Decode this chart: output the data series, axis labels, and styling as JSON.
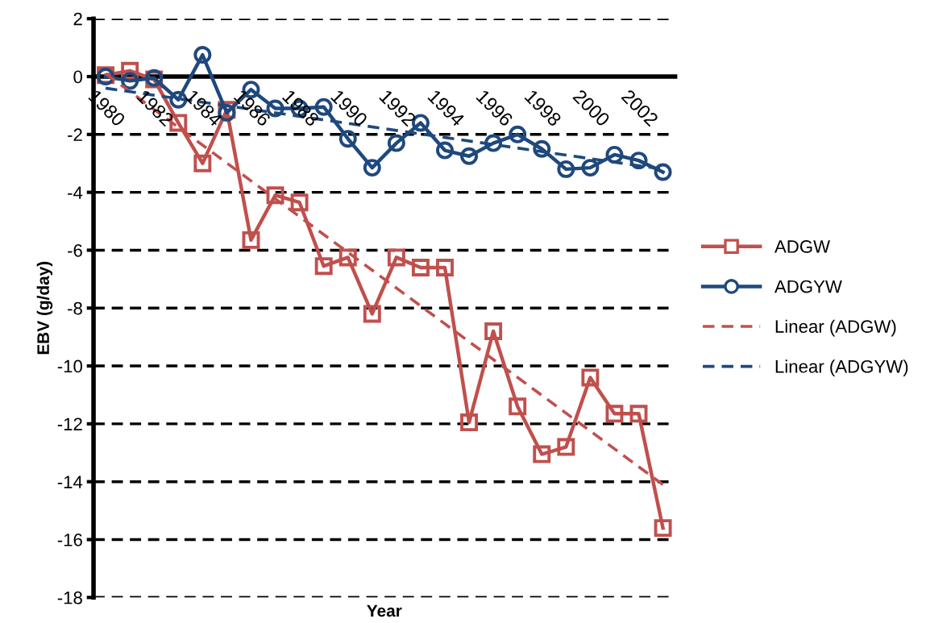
{
  "chart_data": {
    "type": "line",
    "xlabel": "Year",
    "ylabel": "EBV (g/day)",
    "categories": [
      "1980",
      null,
      "1982",
      null,
      "1984",
      null,
      "1986",
      null,
      "1988",
      null,
      "1990",
      null,
      "1992",
      null,
      "1994",
      null,
      "1996",
      null,
      "1998",
      null,
      "2000",
      null,
      "2002",
      null
    ],
    "series": [
      {
        "name": "ADGW",
        "color": "#c0504d",
        "marker": "square",
        "line_style": "solid",
        "values": [
          0.05,
          0.2,
          -0.1,
          -1.6,
          -3.0,
          -1.15,
          -5.65,
          -4.1,
          -4.35,
          -6.55,
          -6.25,
          -8.2,
          -6.25,
          -6.6,
          -6.6,
          -11.95,
          -8.8,
          -11.4,
          -13.05,
          -12.8,
          -10.4,
          -11.65,
          -11.65,
          -15.6
        ]
      },
      {
        "name": "ADGYW",
        "color": "#1f497d",
        "marker": "circle",
        "line_style": "solid",
        "values": [
          0.0,
          -0.15,
          -0.05,
          -0.8,
          0.75,
          -1.25,
          -0.45,
          -1.1,
          -1.1,
          -1.05,
          -2.15,
          -3.15,
          -2.3,
          -1.6,
          -2.55,
          -2.75,
          -2.3,
          -2.0,
          -2.5,
          -3.2,
          -3.15,
          -2.7,
          -2.9,
          -3.3
        ]
      },
      {
        "name": "Linear (ADGW)",
        "color": "#c0504d",
        "marker": "none",
        "line_style": "dashed",
        "values": [
          0.1,
          null,
          null,
          null,
          null,
          null,
          null,
          null,
          null,
          null,
          null,
          null,
          null,
          null,
          null,
          null,
          null,
          null,
          null,
          null,
          null,
          null,
          null,
          -14.1
        ]
      },
      {
        "name": "Linear (ADGYW)",
        "color": "#1f497d",
        "marker": "none",
        "line_style": "dashed",
        "values": [
          -0.4,
          null,
          null,
          null,
          null,
          null,
          null,
          null,
          null,
          null,
          null,
          null,
          null,
          null,
          null,
          null,
          null,
          null,
          null,
          null,
          null,
          null,
          null,
          -3.2
        ]
      }
    ],
    "ylim": [
      -18,
      2
    ],
    "yticks": [
      -18,
      -16,
      -14,
      -12,
      -10,
      -8,
      -6,
      -4,
      -2,
      0,
      2
    ],
    "grid": "y",
    "legend": "right"
  }
}
